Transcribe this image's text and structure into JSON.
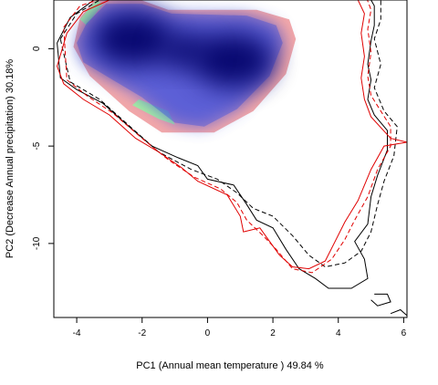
{
  "chart_data": {
    "type": "density_overlay",
    "xlabel": "PC1 (Annual mean temperature ) 49.84 %",
    "ylabel": "PC2 (Decrease Annual precipitation) 30.18%",
    "xlim": [
      -4.7,
      6.1
    ],
    "ylim": [
      -13.8,
      2.5
    ],
    "xticks": [
      -4,
      -2,
      0,
      2,
      4,
      6
    ],
    "yticks": [
      0,
      -5,
      -10
    ],
    "colors": {
      "density_core": "#000066",
      "density_fill": "#4455dd",
      "pink_region": "#f4a8a8",
      "green_region": "#a8f0a0",
      "contour_black": "#000000",
      "contour_red": "#e00000"
    },
    "blue_hotspots": [
      {
        "x": -2.3,
        "y": 0.5,
        "weight": 1.0
      },
      {
        "x": 0.8,
        "y": -0.6,
        "weight": 1.0
      },
      {
        "x": -0.7,
        "y": -0.1,
        "weight": 0.6
      }
    ],
    "pink_region": [
      [
        -3.9,
        1.6
      ],
      [
        -3.4,
        2.6
      ],
      [
        -2.2,
        2.6
      ],
      [
        -1.2,
        2.0
      ],
      [
        1.5,
        2.0
      ],
      [
        2.5,
        1.5
      ],
      [
        2.7,
        0.5
      ],
      [
        2.4,
        -1.3
      ],
      [
        1.4,
        -3.2
      ],
      [
        0.2,
        -4.3
      ],
      [
        -1.4,
        -4.3
      ],
      [
        -2.4,
        -3.2
      ],
      [
        -3.6,
        -1.4
      ],
      [
        -4.1,
        0.1
      ]
    ],
    "blue_region": [
      [
        -3.7,
        1.3
      ],
      [
        -3.1,
        2.3
      ],
      [
        -2.0,
        2.3
      ],
      [
        -1.1,
        1.8
      ],
      [
        1.2,
        1.7
      ],
      [
        2.1,
        1.2
      ],
      [
        2.3,
        0.3
      ],
      [
        1.9,
        -1.4
      ],
      [
        0.9,
        -3.1
      ],
      [
        -0.1,
        -4.0
      ],
      [
        -1.0,
        -3.8
      ],
      [
        -2.0,
        -2.5
      ],
      [
        -3.0,
        -1.5
      ],
      [
        -3.8,
        -0.7
      ],
      [
        -4.0,
        0.3
      ]
    ],
    "green_patches": [
      [
        [
          -3.9,
          1.5
        ],
        [
          -3.4,
          2.5
        ],
        [
          -3.2,
          2.3
        ],
        [
          -3.7,
          1.2
        ]
      ],
      [
        [
          -2.1,
          -2.6
        ],
        [
          -1.2,
          -3.2
        ],
        [
          -1.0,
          -3.9
        ],
        [
          -1.5,
          -3.6
        ],
        [
          -2.3,
          -2.9
        ]
      ]
    ],
    "contours": [
      {
        "color": "black",
        "dash": false,
        "points": [
          [
            -4.6,
            0.3
          ],
          [
            -4.2,
            1.6
          ],
          [
            -3.4,
            2.6
          ],
          [
            -1.8,
            2.9
          ],
          [
            -1.4,
            3.0
          ],
          [
            -0.8,
            3.2
          ],
          [
            0.4,
            3.3
          ],
          [
            1.4,
            3.2
          ],
          [
            2.8,
            3.3
          ],
          [
            4.0,
            3.3
          ],
          [
            4.9,
            2.8
          ],
          [
            5.1,
            2.2
          ],
          [
            5.1,
            1.2
          ],
          [
            5.0,
            0.4
          ],
          [
            4.9,
            -0.8
          ],
          [
            5.0,
            -1.6
          ],
          [
            4.9,
            -2.6
          ],
          [
            5.1,
            -3.4
          ],
          [
            5.5,
            -4.2
          ],
          [
            5.5,
            -5.2
          ],
          [
            5.2,
            -6.5
          ],
          [
            5.0,
            -7.6
          ],
          [
            4.9,
            -9.0
          ],
          [
            4.5,
            -9.9
          ],
          [
            4.8,
            -10.8
          ],
          [
            4.9,
            -11.8
          ],
          [
            4.4,
            -12.3
          ],
          [
            3.7,
            -12.3
          ],
          [
            3.3,
            -11.8
          ],
          [
            2.8,
            -11.3
          ],
          [
            2.4,
            -10.3
          ],
          [
            2.0,
            -9.2
          ],
          [
            1.5,
            -8.8
          ],
          [
            1.2,
            -8.0
          ],
          [
            0.8,
            -7.0
          ],
          [
            0.0,
            -6.7
          ],
          [
            -0.3,
            -6.0
          ],
          [
            -0.9,
            -5.6
          ],
          [
            -1.7,
            -5.0
          ],
          [
            -2.4,
            -4.0
          ],
          [
            -3.2,
            -2.8
          ],
          [
            -4.0,
            -2.1
          ],
          [
            -4.5,
            -1.5
          ]
        ]
      },
      {
        "color": "black",
        "dash": true,
        "points": [
          [
            -4.5,
            0.5
          ],
          [
            -4.0,
            1.8
          ],
          [
            -3.2,
            2.6
          ],
          [
            -1.6,
            3.0
          ],
          [
            0.2,
            3.2
          ],
          [
            1.6,
            3.4
          ],
          [
            3.2,
            3.4
          ],
          [
            4.4,
            3.2
          ],
          [
            5.3,
            2.5
          ],
          [
            5.3,
            1.5
          ],
          [
            5.1,
            0.5
          ],
          [
            5.3,
            -0.8
          ],
          [
            5.1,
            -2.0
          ],
          [
            5.4,
            -3.2
          ],
          [
            5.8,
            -4.0
          ],
          [
            5.7,
            -5.5
          ],
          [
            5.4,
            -6.8
          ],
          [
            5.2,
            -8.0
          ],
          [
            5.0,
            -9.4
          ],
          [
            4.7,
            -10.4
          ],
          [
            4.2,
            -11.0
          ],
          [
            3.6,
            -11.2
          ],
          [
            3.1,
            -10.6
          ],
          [
            2.6,
            -9.6
          ],
          [
            2.0,
            -8.6
          ],
          [
            1.4,
            -8.2
          ],
          [
            0.9,
            -7.4
          ],
          [
            0.3,
            -6.7
          ],
          [
            -0.5,
            -6.2
          ],
          [
            -1.5,
            -5.3
          ],
          [
            -2.3,
            -4.1
          ],
          [
            -3.3,
            -2.6
          ],
          [
            -4.2,
            -1.7
          ]
        ]
      },
      {
        "color": "red",
        "dash": false,
        "points": [
          [
            -4.3,
            0.8
          ],
          [
            -3.8,
            1.9
          ],
          [
            -3.0,
            2.5
          ],
          [
            -1.8,
            2.8
          ],
          [
            -0.6,
            3.0
          ],
          [
            0.8,
            3.1
          ],
          [
            2.2,
            3.1
          ],
          [
            3.6,
            3.1
          ],
          [
            4.6,
            2.5
          ],
          [
            4.8,
            1.8
          ],
          [
            4.7,
            0.8
          ],
          [
            4.8,
            -0.4
          ],
          [
            4.7,
            -1.5
          ],
          [
            4.8,
            -2.6
          ],
          [
            5.0,
            -3.5
          ],
          [
            5.6,
            -4.6
          ],
          [
            6.1,
            -4.8
          ],
          [
            5.4,
            -5.0
          ],
          [
            5.0,
            -6.2
          ],
          [
            4.6,
            -7.8
          ],
          [
            4.2,
            -8.9
          ],
          [
            3.9,
            -9.9
          ],
          [
            3.6,
            -10.9
          ],
          [
            3.1,
            -11.3
          ],
          [
            2.6,
            -11.2
          ],
          [
            2.2,
            -10.6
          ],
          [
            1.9,
            -9.9
          ],
          [
            1.6,
            -9.2
          ],
          [
            1.1,
            -9.4
          ],
          [
            1.0,
            -8.6
          ],
          [
            0.6,
            -7.5
          ],
          [
            -0.3,
            -6.8
          ],
          [
            -0.8,
            -6.1
          ],
          [
            -1.5,
            -5.3
          ],
          [
            -2.2,
            -4.6
          ],
          [
            -3.0,
            -3.4
          ],
          [
            -3.8,
            -2.6
          ],
          [
            -4.4,
            -1.8
          ],
          [
            -4.6,
            -0.9
          ]
        ]
      },
      {
        "color": "red",
        "dash": true,
        "points": [
          [
            -4.4,
            1.1
          ],
          [
            -3.9,
            2.2
          ],
          [
            -3.0,
            2.7
          ],
          [
            -1.2,
            3.2
          ],
          [
            0.6,
            3.3
          ],
          [
            2.4,
            3.4
          ],
          [
            3.8,
            3.4
          ],
          [
            4.8,
            2.9
          ],
          [
            5.0,
            2.0
          ],
          [
            4.9,
            1.0
          ],
          [
            5.0,
            -0.2
          ],
          [
            4.9,
            -1.4
          ],
          [
            5.0,
            -2.4
          ],
          [
            5.3,
            -3.2
          ],
          [
            5.6,
            -4.0
          ],
          [
            5.6,
            -5.0
          ],
          [
            5.2,
            -6.2
          ],
          [
            4.9,
            -7.6
          ],
          [
            4.5,
            -8.8
          ],
          [
            4.2,
            -9.8
          ],
          [
            3.8,
            -10.8
          ],
          [
            3.2,
            -11.5
          ],
          [
            2.6,
            -11.3
          ],
          [
            2.1,
            -10.3
          ],
          [
            1.7,
            -9.6
          ],
          [
            1.2,
            -8.8
          ],
          [
            0.9,
            -7.9
          ],
          [
            0.4,
            -7.2
          ],
          [
            -0.4,
            -6.6
          ],
          [
            -1.2,
            -5.7
          ],
          [
            -2.0,
            -4.6
          ],
          [
            -2.9,
            -3.3
          ],
          [
            -3.7,
            -2.4
          ],
          [
            -4.3,
            -1.6
          ]
        ]
      }
    ],
    "island_contours": [
      {
        "color": "black",
        "dash": false,
        "points": [
          [
            5.1,
            -12.6
          ],
          [
            5.5,
            -12.6
          ],
          [
            5.6,
            -13.0
          ],
          [
            5.2,
            -13.2
          ],
          [
            5.0,
            -12.9
          ]
        ]
      },
      {
        "color": "black",
        "dash": false,
        "points": [
          [
            5.6,
            -13.6
          ],
          [
            5.9,
            -13.4
          ],
          [
            6.1,
            -13.7
          ]
        ]
      }
    ]
  }
}
